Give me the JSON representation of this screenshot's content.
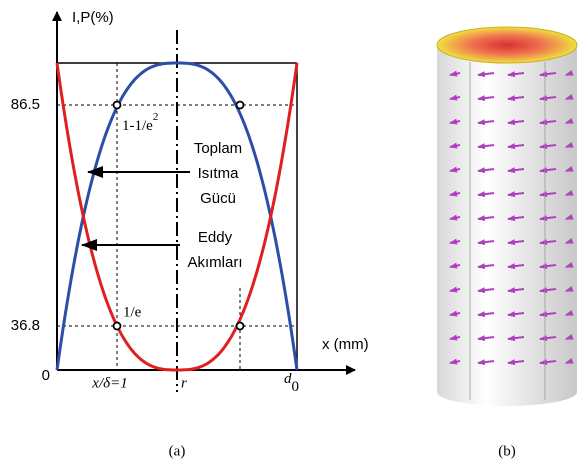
{
  "panel_a": {
    "y_label": "I,P(%)",
    "x_label": "x (mm)",
    "y_ticks": [
      "86.5",
      "36.8",
      "0"
    ],
    "x_ticks": {
      "delta": "x/δ=1",
      "r": "r",
      "d_base": "d",
      "d_sub": "0"
    },
    "point_labels": {
      "upper_base": "1-1/e",
      "upper_sup": "2",
      "lower": "1/e"
    },
    "annotations": {
      "power": [
        "Toplam",
        "Isıtma",
        "Gücü"
      ],
      "eddy": [
        "Eddy",
        "Akımları"
      ]
    }
  },
  "captions": [
    "(a)",
    "(b)"
  ]
}
